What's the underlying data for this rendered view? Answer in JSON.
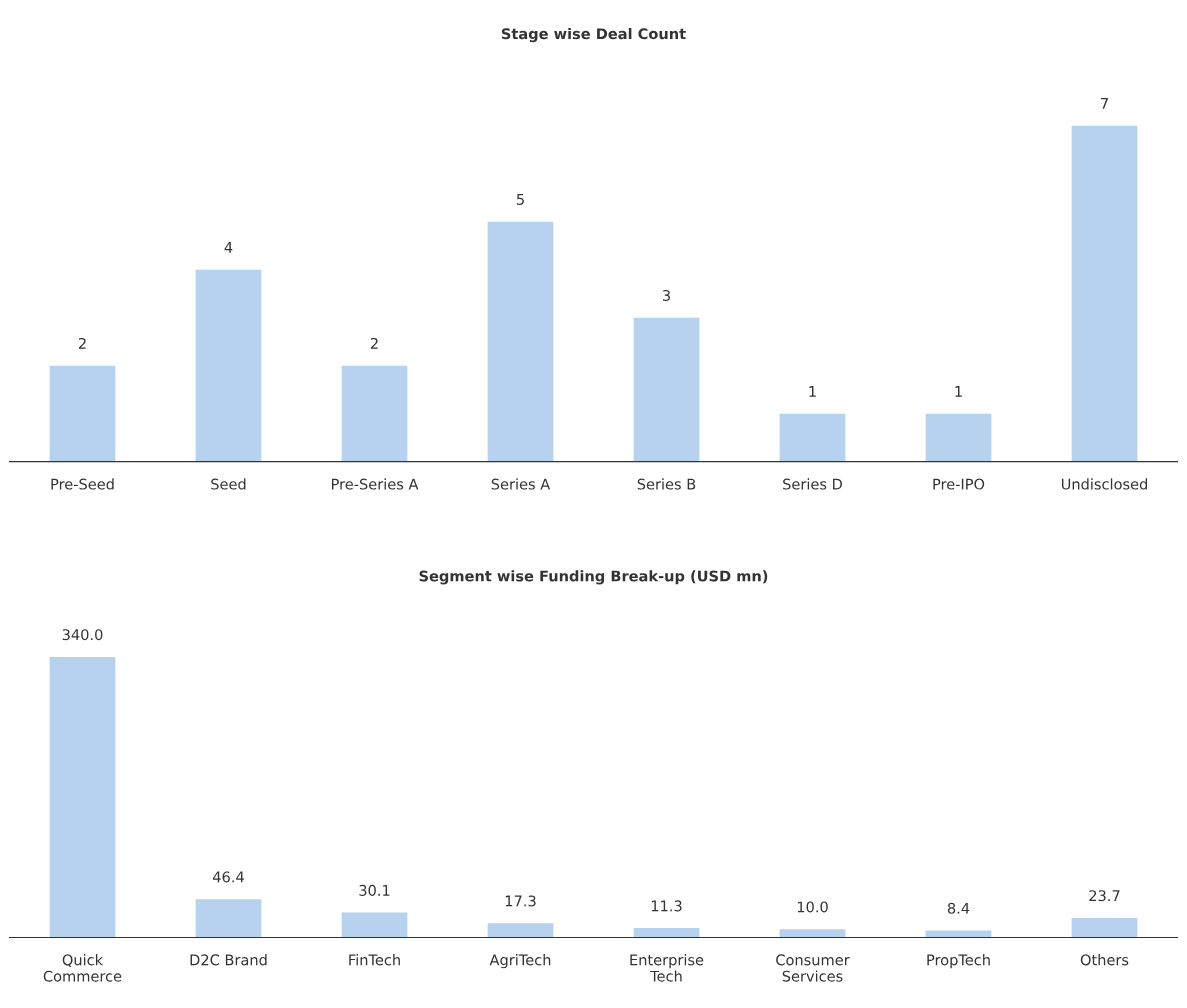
{
  "chart_data": [
    {
      "type": "bar",
      "title": "Stage wise Deal Count",
      "categories": [
        "Pre-Seed",
        "Seed",
        "Pre-Series A",
        "Series A",
        "Series B",
        "Series D",
        "Pre-IPO",
        "Undisclosed"
      ],
      "values": [
        2,
        4,
        2,
        5,
        3,
        1,
        1,
        7
      ],
      "color": "#b6d2ef",
      "data_labels": true,
      "grid": false,
      "legend": false
    },
    {
      "type": "bar",
      "title": "Segment wise Funding Break-up (USD mn)",
      "categories": [
        "Quick\nCommerce",
        "D2C Brand",
        "FinTech",
        "AgriTech",
        "Enterprise\nTech",
        "Consumer\nServices",
        "PropTech",
        "Others"
      ],
      "values": [
        340.0,
        46.4,
        30.1,
        17.3,
        11.3,
        10.0,
        8.4,
        23.7
      ],
      "value_labels": [
        "340.0",
        "46.4",
        "30.1",
        "17.3",
        "11.3",
        "10.0",
        "8.4",
        "23.7"
      ],
      "color": "#b6d2ef",
      "grid": false,
      "legend": false
    }
  ]
}
